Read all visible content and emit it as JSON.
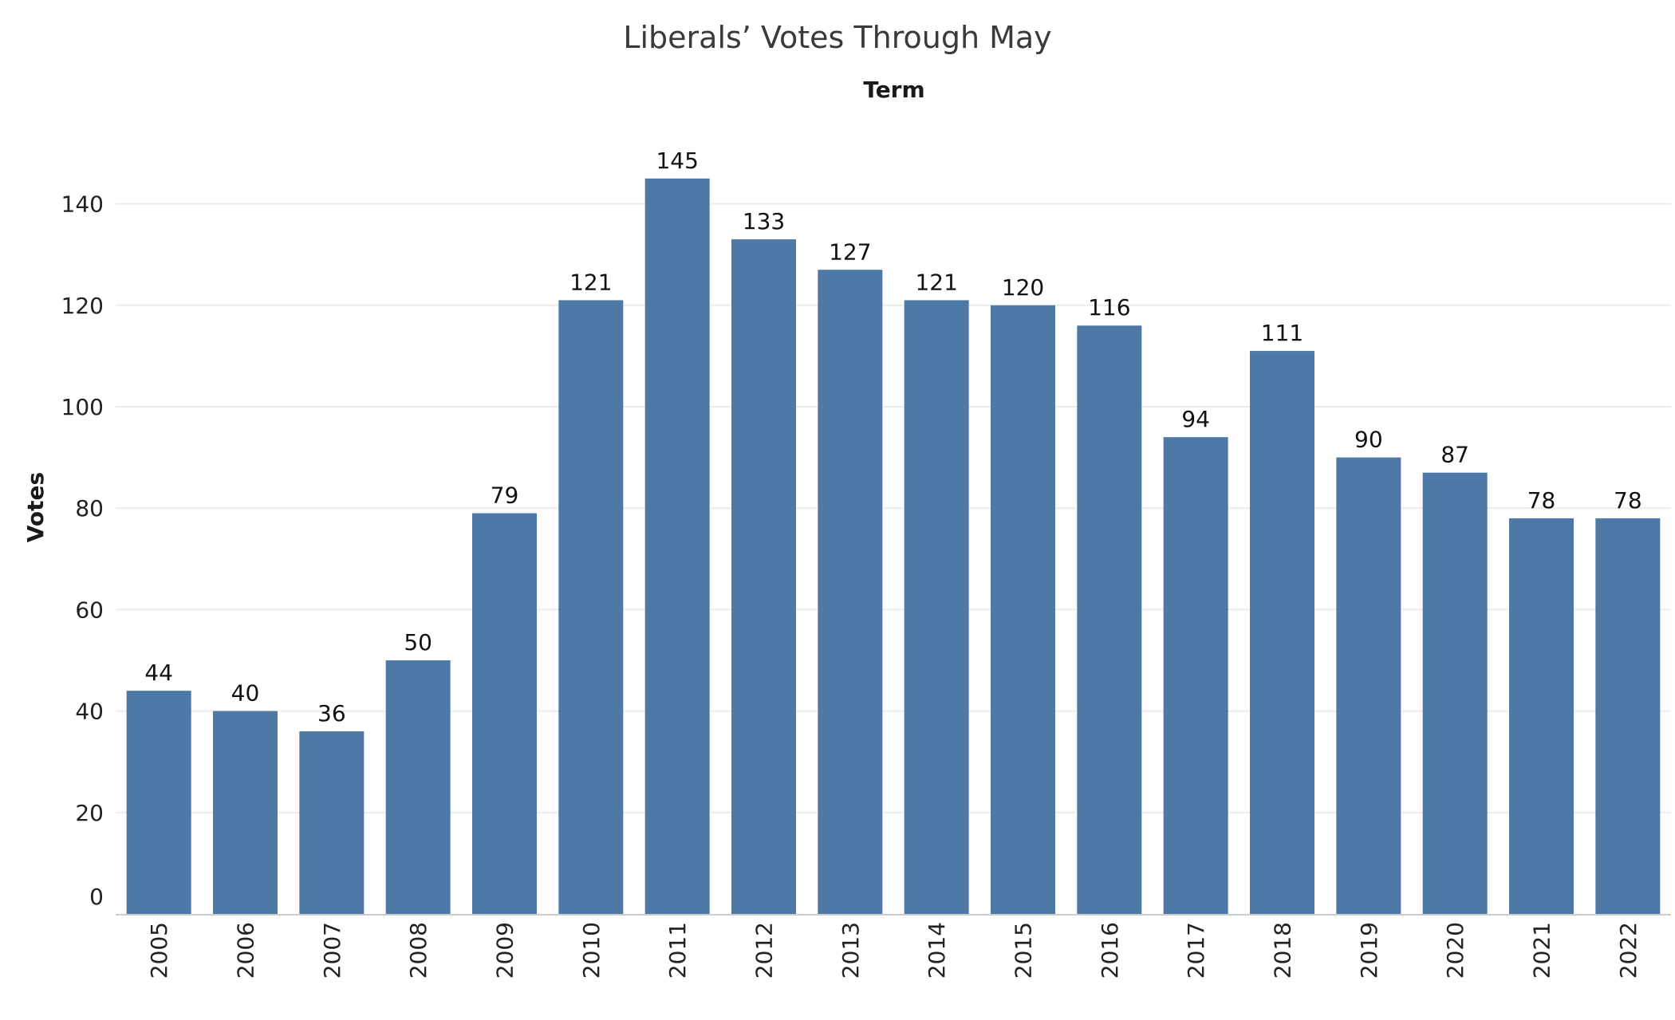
{
  "chart_data": {
    "type": "bar",
    "title": "Liberals’ Votes Through May",
    "xlabel": "Term",
    "ylabel": "Votes",
    "categories": [
      "2005",
      "2006",
      "2007",
      "2008",
      "2009",
      "2010",
      "2011",
      "2012",
      "2013",
      "2014",
      "2015",
      "2016",
      "2017",
      "2018",
      "2019",
      "2020",
      "2021",
      "2022"
    ],
    "values": [
      44,
      40,
      36,
      50,
      79,
      121,
      145,
      133,
      127,
      121,
      120,
      116,
      94,
      111,
      90,
      87,
      78,
      78
    ],
    "data_labels": [
      "44",
      "40",
      "36",
      "50",
      "79",
      "121",
      "145",
      "133",
      "127",
      "121",
      "120",
      "116",
      "94",
      "111",
      "90",
      "87",
      "78",
      "78"
    ],
    "ylim": [
      0,
      160
    ],
    "yticks": [
      0,
      20,
      40,
      60,
      80,
      100,
      120,
      140
    ],
    "ytick_labels": [
      "0",
      "20",
      "40",
      "60",
      "80",
      "100",
      "120",
      "140"
    ],
    "grid": true,
    "bar_color": "#4e79a7"
  }
}
